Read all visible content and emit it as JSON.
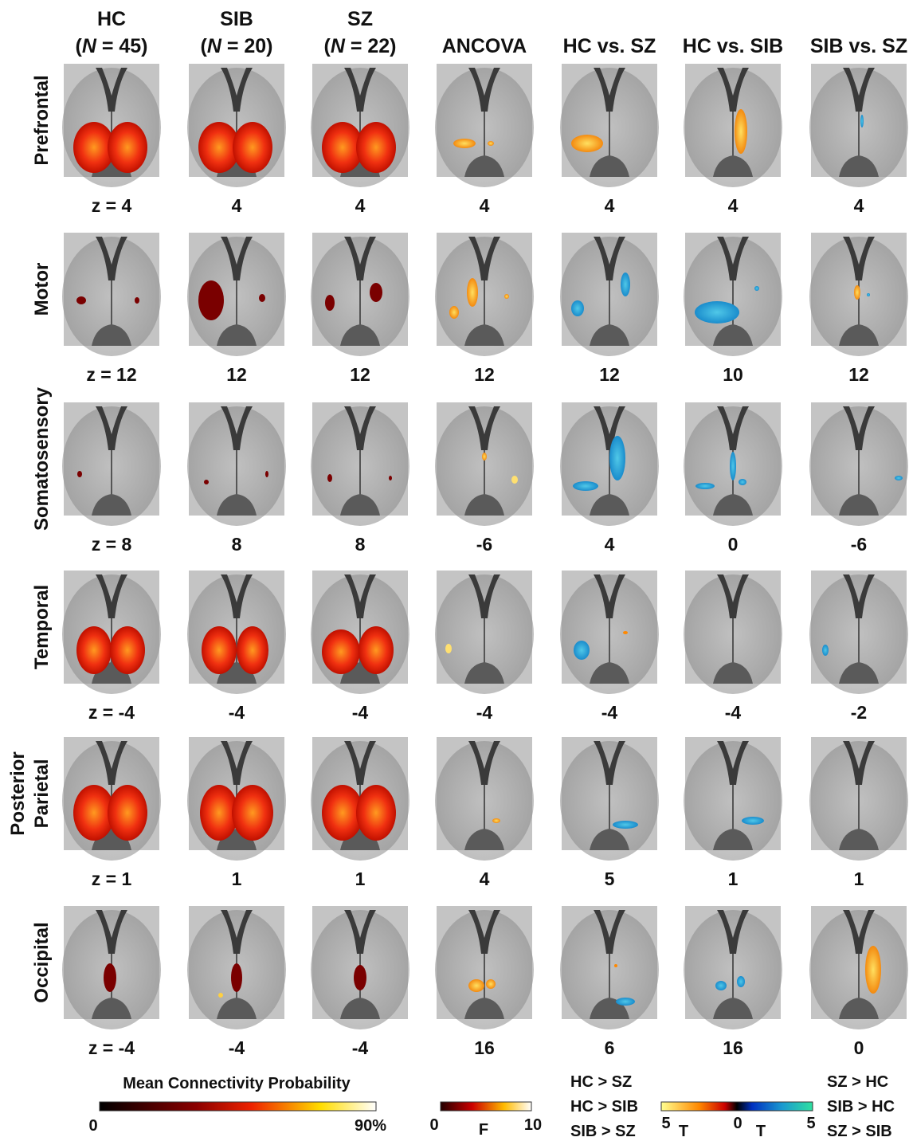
{
  "columns": [
    {
      "title": "HC",
      "subtitle": [
        "(",
        "N",
        " = 45)"
      ]
    },
    {
      "title": "SIB",
      "subtitle": [
        "(",
        "N",
        " = 20)"
      ]
    },
    {
      "title": "SZ",
      "subtitle": [
        "(",
        "N",
        " = 22)"
      ]
    },
    {
      "title": "ANCOVA"
    },
    {
      "title": "HC vs. SZ"
    },
    {
      "title": "HC vs. SIB"
    },
    {
      "title": "SIB vs. SZ"
    }
  ],
  "rows": [
    {
      "label": [
        "Prefrontal"
      ],
      "z": [
        "z = 4",
        "4",
        "4",
        "4",
        "4",
        "4",
        "4"
      ]
    },
    {
      "label": [
        "Motor"
      ],
      "z": [
        "z = 12",
        "12",
        "12",
        "12",
        "12",
        "10",
        "12"
      ]
    },
    {
      "label": [
        "Somatosensory"
      ],
      "z": [
        "z = 8",
        "8",
        "8",
        "-6",
        "4",
        "0",
        "-6"
      ]
    },
    {
      "label": [
        "Temporal"
      ],
      "z": [
        "z = -4",
        "-4",
        "-4",
        "-4",
        "-4",
        "-4",
        "-2"
      ]
    },
    {
      "label": [
        "Posterior",
        "Parietal"
      ],
      "z": [
        "z = 1",
        "1",
        "1",
        "4",
        "5",
        "1",
        "1"
      ]
    },
    {
      "label": [
        "Occipital"
      ],
      "z": [
        "z = -4",
        "-4",
        "-4",
        "16",
        "6",
        "16",
        "0"
      ]
    }
  ],
  "legend": {
    "probability": {
      "title": "Mean Connectivity Probability",
      "min": "0",
      "max": "90%"
    },
    "f": {
      "min": "0",
      "label": "F",
      "max": "10"
    },
    "t": {
      "left": [
        "HC > SZ",
        "HC > SIB",
        "SIB > SZ"
      ],
      "right": [
        "SZ  > HC",
        "SIB > HC",
        "SZ  > SIB"
      ],
      "scale": [
        "5",
        "T",
        "0",
        "T",
        "5"
      ]
    }
  }
}
